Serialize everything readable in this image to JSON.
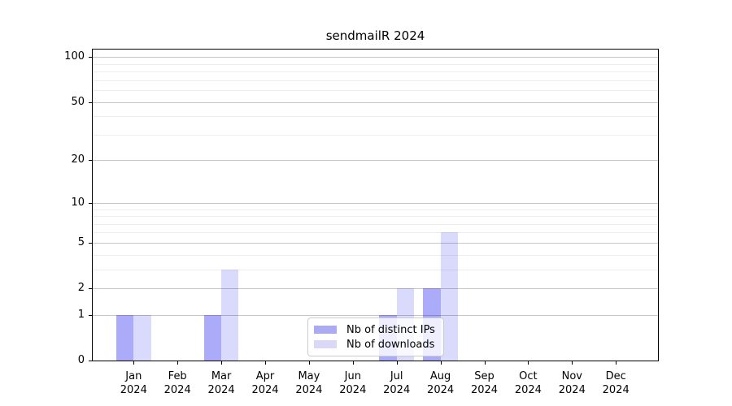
{
  "chart_data": {
    "type": "bar",
    "title": "sendmailR 2024",
    "categories": [
      "Jan",
      "Feb",
      "Mar",
      "Apr",
      "May",
      "Jun",
      "Jul",
      "Aug",
      "Sep",
      "Oct",
      "Nov",
      "Dec"
    ],
    "x_sub_label": "2024",
    "series": [
      {
        "name": "Nb of distinct IPs",
        "color": "#abaaf2",
        "fill": "rgba(8,8,238,0.34)",
        "values": [
          1,
          0,
          1,
          0,
          0,
          0,
          1,
          2,
          0,
          0,
          0,
          0
        ]
      },
      {
        "name": "Nb of downloads",
        "color": "#d9d9f7",
        "fill": "rgba(8,8,238,0.15)",
        "values": [
          1,
          0,
          3,
          0,
          0,
          0,
          2,
          6,
          0,
          0,
          0,
          0
        ]
      }
    ],
    "y_scale": "log1p",
    "y_ticks": [
      0,
      1,
      2,
      5,
      10,
      20,
      50,
      100
    ],
    "y_minor_ticks": [
      3,
      4,
      6,
      7,
      8,
      9,
      30,
      40,
      60,
      70,
      80,
      90
    ],
    "ylim": [
      0,
      115
    ],
    "grid": "horizontal",
    "legend_position": "inside-bottom-center"
  }
}
